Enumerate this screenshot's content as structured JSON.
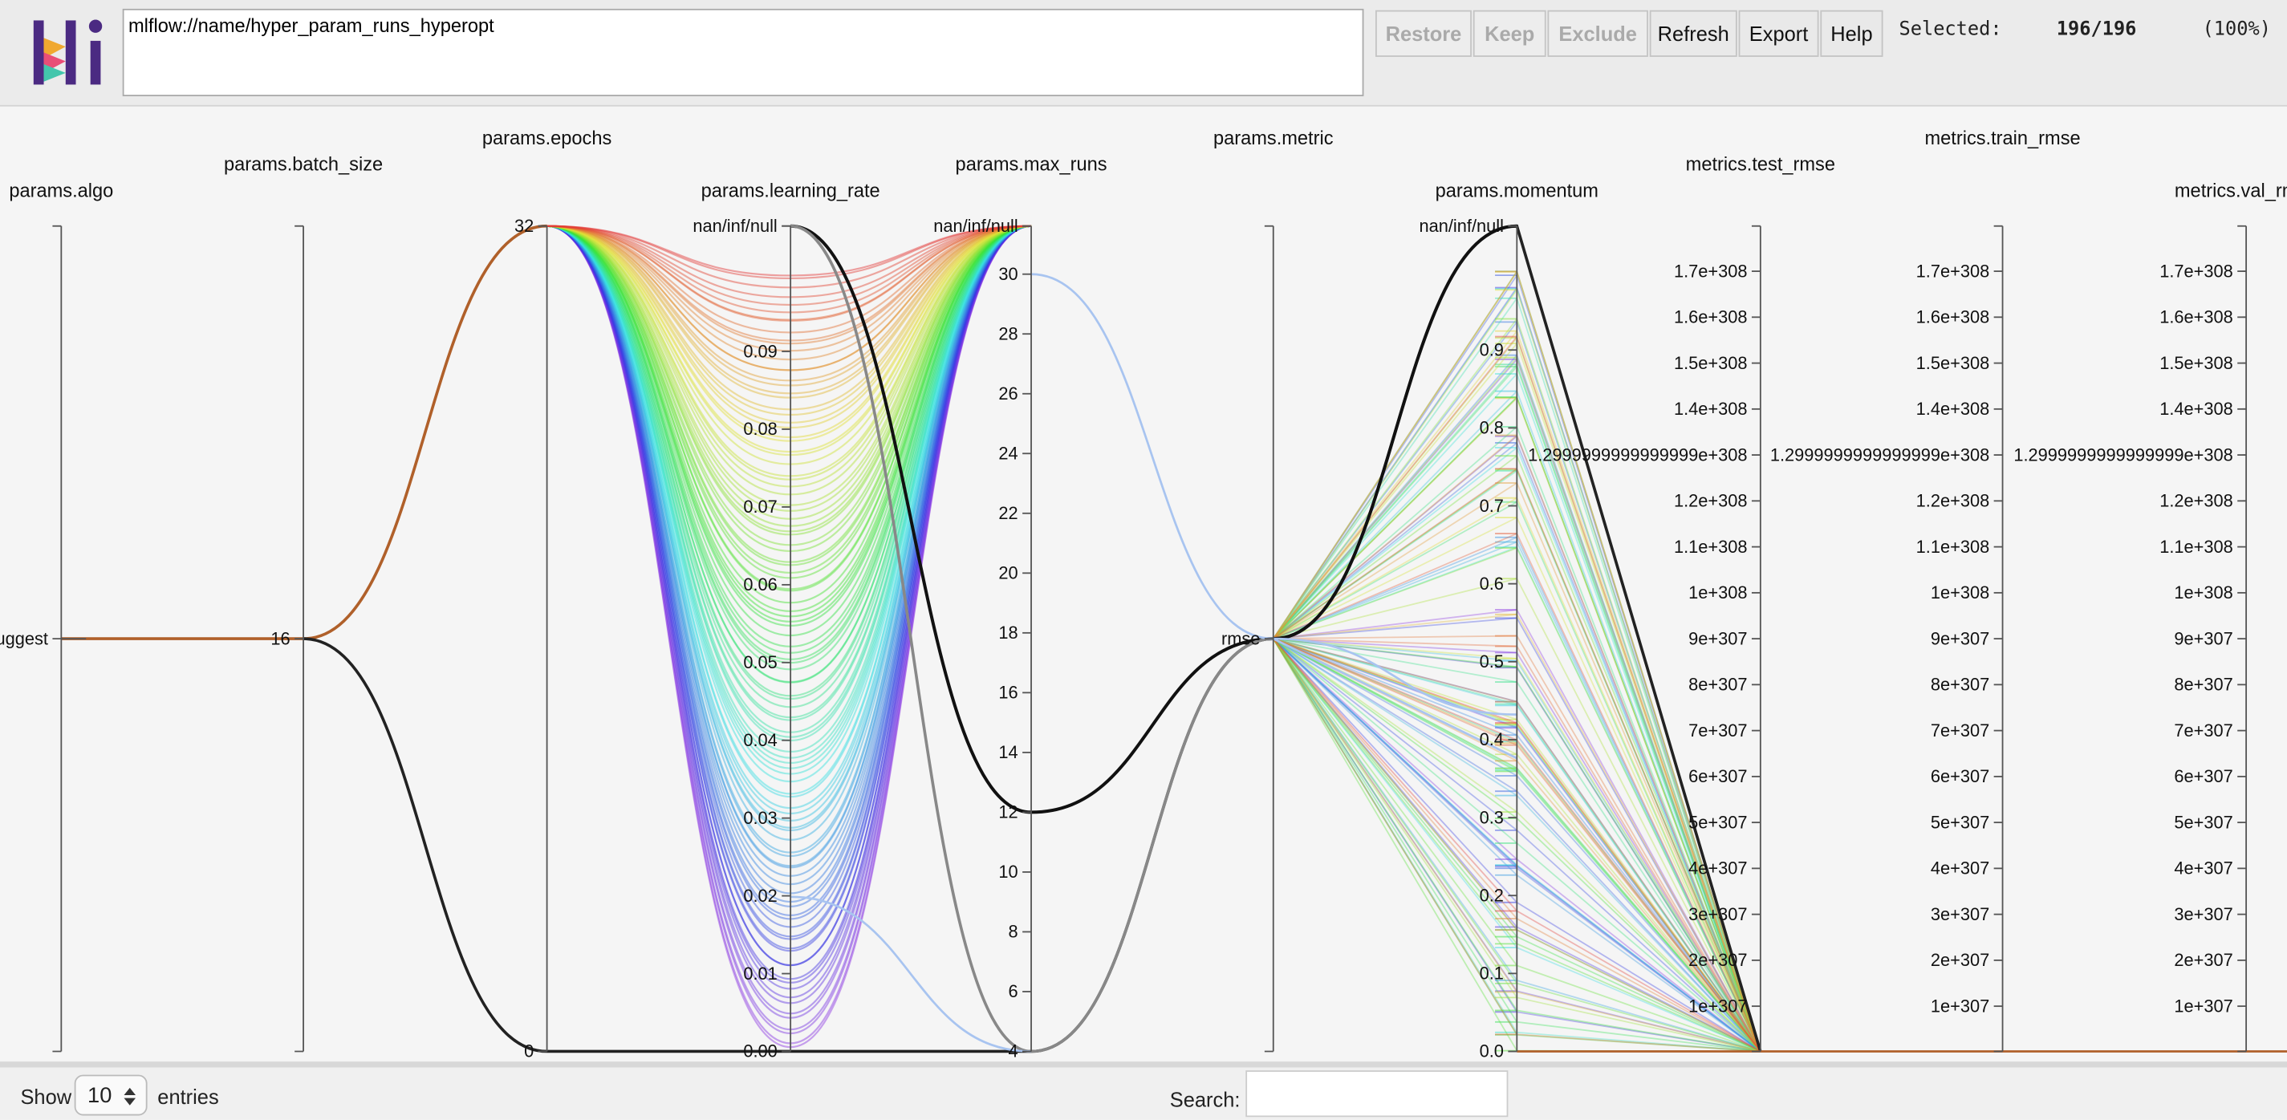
{
  "header": {
    "query": "mlflow://name/hyper_param_runs_hyperopt",
    "buttons": [
      "Restore",
      "Keep",
      "Exclude",
      "Refresh",
      "Export",
      "Help"
    ],
    "selected_label": "Selected:",
    "selected_count": "196/196",
    "selected_pct": "(100%)"
  },
  "axes": [
    {
      "label": "params.algo",
      "ticks": [
        "uggest"
      ]
    },
    {
      "label": "params.batch_size",
      "ticks": [
        "16"
      ]
    },
    {
      "label": "params.epochs",
      "ticks": [
        "32",
        "0"
      ]
    },
    {
      "label": "params.learning_rate",
      "ticks": [
        "nan/inf/null",
        "0.09",
        "0.08",
        "0.07",
        "0.06",
        "0.05",
        "0.04",
        "0.03",
        "0.02",
        "0.01",
        "0.00"
      ]
    },
    {
      "label": "params.max_runs",
      "ticks": [
        "nan/inf/null",
        "30",
        "28",
        "26",
        "24",
        "22",
        "20",
        "18",
        "16",
        "14",
        "12",
        "10",
        "8",
        "6",
        "4"
      ]
    },
    {
      "label": "params.metric",
      "ticks": [
        "rmse"
      ]
    },
    {
      "label": "params.momentum",
      "ticks": [
        "nan/inf/null",
        "0.9",
        "0.8",
        "0.7",
        "0.6",
        "0.5",
        "0.4",
        "0.3",
        "0.2",
        "0.1",
        "0.0"
      ]
    },
    {
      "label": "metrics.test_rmse",
      "ticks": [
        "1.7e+308",
        "1.6e+308",
        "1.5e+308",
        "1.4e+308",
        "1.2999999999999999e+308",
        "1.2e+308",
        "1.1e+308",
        "1e+308",
        "9e+307",
        "8e+307",
        "7e+307",
        "6e+307",
        "5e+307",
        "4e+307",
        "3e+307",
        "2e+307",
        "1e+307"
      ]
    },
    {
      "label": "metrics.train_rmse",
      "ticks": [
        "1.7e+308",
        "1.6e+308",
        "1.5e+308",
        "1.4e+308",
        "1.2999999999999999e+308",
        "1.2e+308",
        "1.1e+308",
        "1e+308",
        "9e+307",
        "8e+307",
        "7e+307",
        "6e+307",
        "5e+307",
        "4e+307",
        "3e+307",
        "2e+307",
        "1e+307"
      ]
    },
    {
      "label": "metrics.val_rmse",
      "ticks": [
        "1.7e+308",
        "1.6e+308",
        "1.5e+308",
        "1.4e+308",
        "1.2999999999999999e+308",
        "1.2e+308",
        "1.1e+308",
        "1e+308",
        "9e+307",
        "8e+307",
        "7e+307",
        "6e+307",
        "5e+307",
        "4e+307",
        "3e+307",
        "2e+307",
        "1e+307"
      ]
    }
  ],
  "footer": {
    "show": "Show",
    "entries_value": "10",
    "entries": "entries",
    "search": "Search:"
  }
}
